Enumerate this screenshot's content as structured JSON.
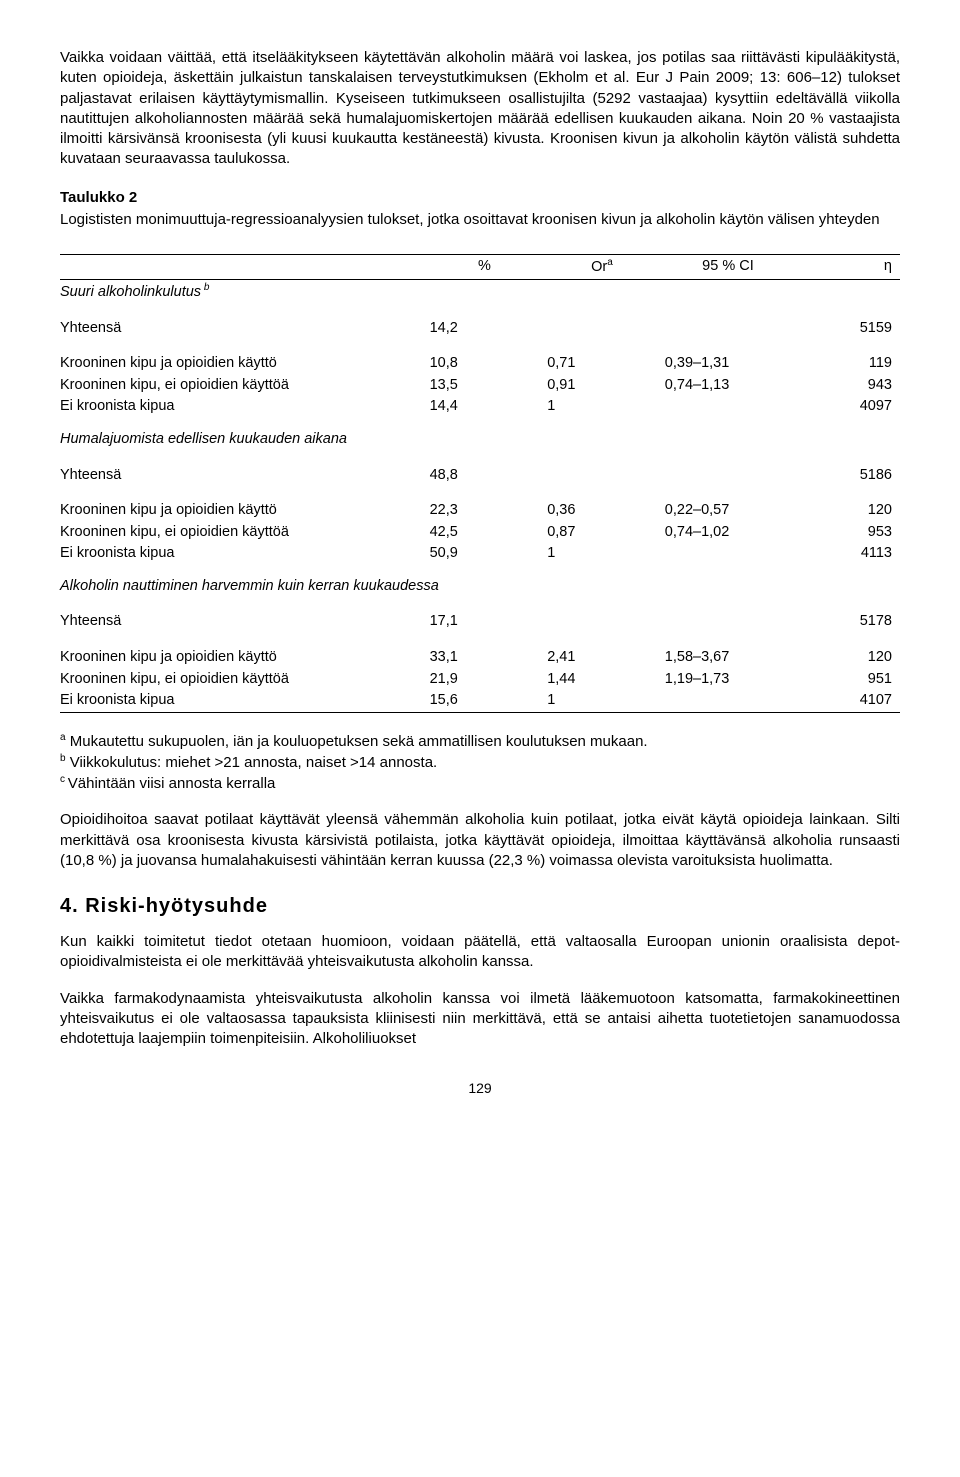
{
  "paragraphs": {
    "intro": "Vaikka voidaan väittää, että itselääkitykseen käytettävän alkoholin määrä voi laskea, jos potilas saa riittävästi kipulääkitystä, kuten opioideja, äskettäin julkaistun tanskalaisen terveystutkimuksen (Ekholm et al. Eur J Pain 2009; 13: 606–12) tulokset paljastavat erilaisen käyttäytymismallin. Kyseiseen tutkimukseen osallistujilta (5292 vastaajaa) kysyttiin edeltävällä viikolla nautittujen alkoholiannosten määrää sekä humalajuomiskertojen määrää edellisen kuukauden aikana. Noin 20 % vastaajista ilmoitti kärsivänsä kroonisesta (yli kuusi kuukautta kestäneestä) kivusta. Kroonisen kivun ja alkoholin käytön välistä suhdetta kuvataan seuraavassa taulukossa."
  },
  "table": {
    "title": "Taulukko 2",
    "subtitle": "Logististen monimuuttuja-regressioanalyysien tulokset, jotka osoittavat kroonisen kivun ja alkoholin käytön välisen yhteyden",
    "headers": {
      "pct": "%",
      "or": "Or",
      "or_sup": "a",
      "ci": "95 % CI",
      "n": "η"
    },
    "sections": [
      {
        "label": "Suuri alkoholinkulutus",
        "label_sup": "b",
        "total": {
          "label": "Yhteensä",
          "pct": "14,2",
          "or": "",
          "ci": "",
          "n": "5159"
        },
        "rows": [
          {
            "label": "Krooninen kipu ja opioidien käyttö",
            "pct": "10,8",
            "or": "0,71",
            "ci": "0,39–1,31",
            "n": "119"
          },
          {
            "label": "Krooninen kipu, ei opioidien käyttöä",
            "pct": "13,5",
            "or": "0,91",
            "ci": "0,74–1,13",
            "n": "943"
          },
          {
            "label": "Ei kroonista kipua",
            "pct": "14,4",
            "or": "1",
            "ci": "",
            "n": "4097"
          }
        ]
      },
      {
        "label": "Humalajuomista edellisen kuukauden aikana",
        "label_sup": "",
        "total": {
          "label": "Yhteensä",
          "pct": "48,8",
          "or": "",
          "ci": "",
          "n": "5186"
        },
        "rows": [
          {
            "label": "Krooninen kipu ja opioidien käyttö",
            "pct": "22,3",
            "or": "0,36",
            "ci": "0,22–0,57",
            "n": "120"
          },
          {
            "label": "Krooninen kipu, ei opioidien käyttöä",
            "pct": "42,5",
            "or": "0,87",
            "ci": "0,74–1,02",
            "n": "953"
          },
          {
            "label": "Ei kroonista kipua",
            "pct": "50,9",
            "or": "1",
            "ci": "",
            "n": "4113"
          }
        ]
      },
      {
        "label": "Alkoholin nauttiminen harvemmin kuin kerran kuukaudessa",
        "label_sup": "",
        "total": {
          "label": "Yhteensä",
          "pct": "17,1",
          "or": "",
          "ci": "",
          "n": "5178"
        },
        "rows": [
          {
            "label": "Krooninen kipu ja opioidien käyttö",
            "pct": "33,1",
            "or": "2,41",
            "ci": "1,58–3,67",
            "n": "120"
          },
          {
            "label": "Krooninen kipu, ei opioidien käyttöä",
            "pct": "21,9",
            "or": "1,44",
            "ci": "1,19–1,73",
            "n": "951"
          },
          {
            "label": "Ei kroonista kipua",
            "pct": "15,6",
            "or": "1",
            "ci": "",
            "n": "4107"
          }
        ]
      }
    ]
  },
  "footnotes": {
    "a": "Mukautettu sukupuolen, iän ja kouluopetuksen sekä ammatillisen koulutuksen mukaan.",
    "b": "Viikkokulutus: miehet >21 annosta, naiset >14 annosta.",
    "c": "Vähintään viisi annosta kerralla"
  },
  "paragraphs2": {
    "p1": "Opioidihoitoa saavat potilaat käyttävät yleensä vähemmän alkoholia kuin potilaat, jotka eivät käytä opioideja lainkaan. Silti merkittävä osa kroonisesta kivusta kärsivistä potilaista, jotka käyttävät opioideja, ilmoittaa käyttävänsä alkoholia runsaasti (10,8 %) ja juovansa humalahakuisesti vähintään kerran kuussa (22,3 %) voimassa olevista varoituksista huolimatta."
  },
  "section4": {
    "heading": "4. Riski-hyötysuhde",
    "p1": "Kun kaikki toimitetut tiedot otetaan huomioon, voidaan päätellä, että valtaosalla Euroopan unionin oraalisista depot-opioidivalmisteista ei ole merkittävää yhteisvaikutusta alkoholin kanssa.",
    "p2": "Vaikka farmakodynaamista yhteisvaikutusta alkoholin kanssa voi ilmetä lääkemuotoon katsomatta, farmakokineettinen yhteisvaikutus ei ole valtaosassa tapauksista kliinisesti niin merkittävä, että se antaisi aihetta tuotetietojen sanamuodossa ehdotettuja laajempiin toimenpiteisiin. Alkoholiliuokset"
  },
  "page_number": "129"
}
